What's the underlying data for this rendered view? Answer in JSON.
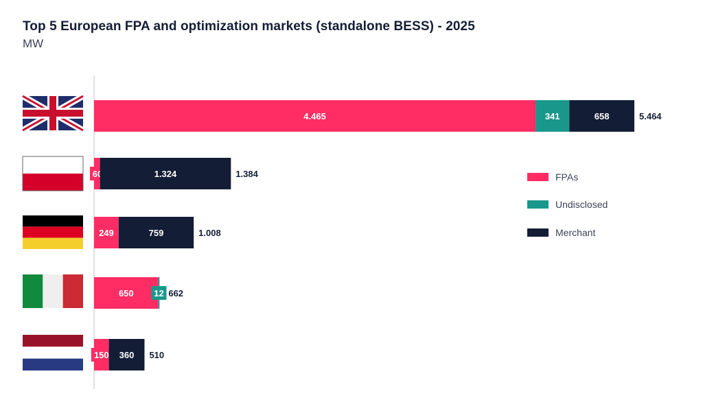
{
  "chart_data": {
    "type": "bar",
    "orientation": "horizontal",
    "stacked": true,
    "title": "Top 5 European FPA and optimization markets (standalone BESS) - 2025",
    "subtitle": "MW",
    "xlabel": "",
    "ylabel": "",
    "categories": [
      "United Kingdom",
      "Poland",
      "Germany",
      "Italy",
      "Netherlands"
    ],
    "category_icons": [
      "uk-flag",
      "poland-flag",
      "germany-flag",
      "italy-flag",
      "netherlands-flag"
    ],
    "series": [
      {
        "name": "FPAs",
        "color": "#ff2d64",
        "values": [
          4465,
          60,
          249,
          650,
          150
        ],
        "labels": [
          "4.465",
          "60",
          "249",
          "650",
          "150"
        ]
      },
      {
        "name": "Undisclosed",
        "color": "#1a978b",
        "values": [
          341,
          0,
          0,
          12,
          0
        ],
        "labels": [
          "341",
          "",
          "",
          "12",
          ""
        ]
      },
      {
        "name": "Merchant",
        "color": "#131d35",
        "values": [
          658,
          1324,
          759,
          0,
          360
        ],
        "labels": [
          "658",
          "1.324",
          "759",
          "",
          "360"
        ]
      }
    ],
    "totals": [
      5464,
      1384,
      1008,
      662,
      510
    ],
    "total_labels": [
      "5.464",
      "1.384",
      "1.008",
      "662",
      "510"
    ],
    "xlim": [
      0,
      5464
    ],
    "grid": false,
    "legend": {
      "position": "right",
      "entries": [
        "FPAs",
        "Undisclosed",
        "Merchant"
      ]
    }
  }
}
